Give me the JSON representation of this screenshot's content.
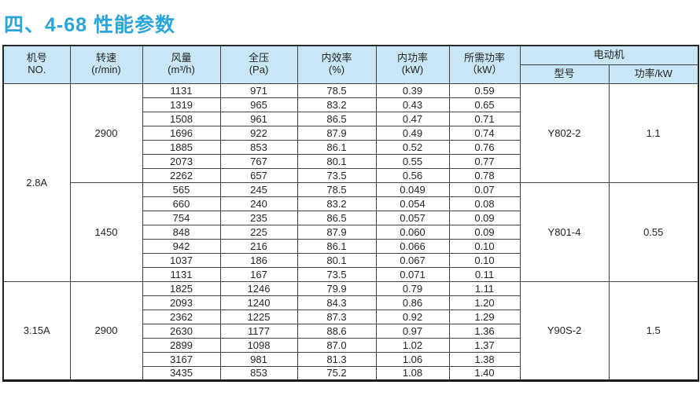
{
  "page_title": "四、4-68 性能参数",
  "colors": {
    "title_blue": "#2aa4dc",
    "header_blue": "#c8e6f5",
    "machine_cell_blue": "#c9e7f6",
    "stripe_gray": "#e8e8e8",
    "border_dark": "#424242"
  },
  "table": {
    "columns": [
      {
        "label_top": "机号",
        "label_bottom": "NO."
      },
      {
        "label_top": "转速",
        "label_bottom": "(r/min)"
      },
      {
        "label_top": "风量",
        "label_bottom": "(m³/h)"
      },
      {
        "label_top": "全压",
        "label_bottom": "(Pa)"
      },
      {
        "label_top": "内效率",
        "label_bottom": "(%)"
      },
      {
        "label_top": "内功率",
        "label_bottom": "(kW)"
      },
      {
        "label_top": "所需功率",
        "label_bottom": "（kW）"
      }
    ],
    "motor_group": {
      "label": "电动机",
      "sub_columns": [
        "型号",
        "功率/kW"
      ]
    },
    "groups": [
      {
        "machine_no": "2.8A",
        "speed_blocks": [
          {
            "speed": "2900",
            "motor_model": "Y802-2",
            "motor_power": "1.1",
            "rows": [
              {
                "flow": "1131",
                "pressure": "971",
                "efficiency": "78.5",
                "power": "0.39",
                "required_power": "0.59"
              },
              {
                "flow": "1319",
                "pressure": "965",
                "efficiency": "83.2",
                "power": "0.43",
                "required_power": "0.65"
              },
              {
                "flow": "1508",
                "pressure": "961",
                "efficiency": "86.5",
                "power": "0.47",
                "required_power": "0.71"
              },
              {
                "flow": "1696",
                "pressure": "922",
                "efficiency": "87.9",
                "power": "0.49",
                "required_power": "0.74"
              },
              {
                "flow": "1885",
                "pressure": "853",
                "efficiency": "86.1",
                "power": "0.52",
                "required_power": "0.76"
              },
              {
                "flow": "2073",
                "pressure": "767",
                "efficiency": "80.1",
                "power": "0.55",
                "required_power": "0.77"
              },
              {
                "flow": "2262",
                "pressure": "657",
                "efficiency": "73.5",
                "power": "0.56",
                "required_power": "0.78"
              }
            ]
          },
          {
            "speed": "1450",
            "motor_model": "Y801-4",
            "motor_power": "0.55",
            "rows": [
              {
                "flow": "565",
                "pressure": "245",
                "efficiency": "78.5",
                "power": "0.049",
                "required_power": "0.07"
              },
              {
                "flow": "660",
                "pressure": "240",
                "efficiency": "83.2",
                "power": "0.054",
                "required_power": "0.08"
              },
              {
                "flow": "754",
                "pressure": "235",
                "efficiency": "86.5",
                "power": "0.057",
                "required_power": "0.09"
              },
              {
                "flow": "848",
                "pressure": "225",
                "efficiency": "87.9",
                "power": "0.060",
                "required_power": "0.09"
              },
              {
                "flow": "942",
                "pressure": "216",
                "efficiency": "86.1",
                "power": "0.066",
                "required_power": "0.10"
              },
              {
                "flow": "1037",
                "pressure": "186",
                "efficiency": "80.1",
                "power": "0.067",
                "required_power": "0.10"
              },
              {
                "flow": "1131",
                "pressure": "167",
                "efficiency": "73.5",
                "power": "0.071",
                "required_power": "0.11"
              }
            ]
          }
        ]
      },
      {
        "machine_no": "3.15A",
        "speed_blocks": [
          {
            "speed": "2900",
            "motor_model": "Y90S-2",
            "motor_power": "1.5",
            "rows": [
              {
                "flow": "1825",
                "pressure": "1246",
                "efficiency": "79.9",
                "power": "0.79",
                "required_power": "1.11"
              },
              {
                "flow": "2093",
                "pressure": "1240",
                "efficiency": "84.3",
                "power": "0.86",
                "required_power": "1.20"
              },
              {
                "flow": "2362",
                "pressure": "1225",
                "efficiency": "87.3",
                "power": "0.92",
                "required_power": "1.29"
              },
              {
                "flow": "2630",
                "pressure": "1177",
                "efficiency": "88.6",
                "power": "0.97",
                "required_power": "1.36"
              },
              {
                "flow": "2899",
                "pressure": "1098",
                "efficiency": "87.0",
                "power": "1.02",
                "required_power": "1.37"
              },
              {
                "flow": "3167",
                "pressure": "981",
                "efficiency": "81.3",
                "power": "1.06",
                "required_power": "1.38"
              },
              {
                "flow": "3435",
                "pressure": "853",
                "efficiency": "75.2",
                "power": "1.08",
                "required_power": "1.40"
              }
            ]
          }
        ]
      }
    ]
  }
}
